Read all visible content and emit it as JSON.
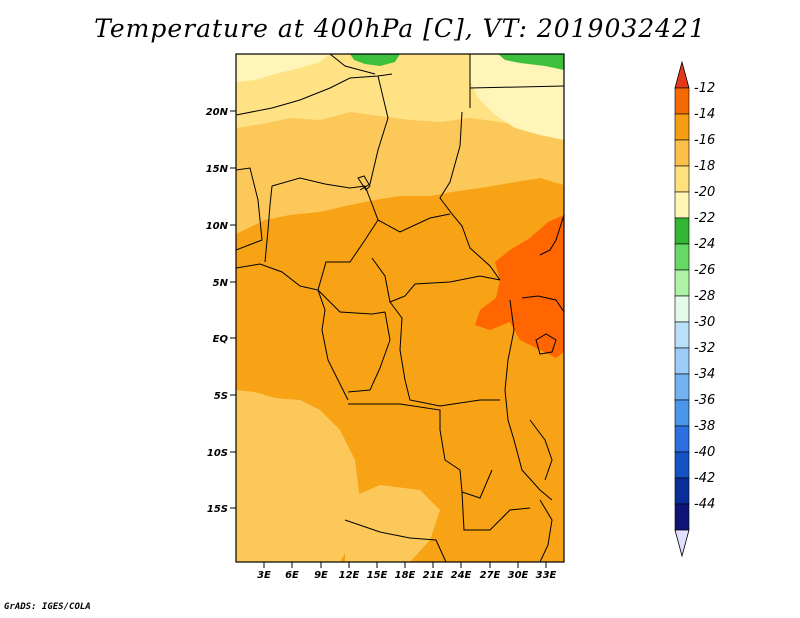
{
  "title": "Temperature at 400hPa [C], VT: 2019032421",
  "footer": "GrADS: IGES/COLA",
  "map": {
    "variable": "Temperature",
    "level": "400hPa",
    "units": "C",
    "valid_time": "2019032421",
    "lat_labels": [
      "20N",
      "15N",
      "10N",
      "5N",
      "EQ",
      "5S",
      "10S",
      "15S"
    ],
    "lon_labels": [
      "3E",
      "6E",
      "9E",
      "12E",
      "15E",
      "18E",
      "21E",
      "24E",
      "27E",
      "30E",
      "33E"
    ],
    "colors": {
      "c_m24_m22": "#3dc13d",
      "c_m22_m20": "#fff5b8",
      "c_m20_m18": "#ffe283",
      "c_m18_m16": "#fbc859",
      "c_m16_m14": "#f7a315",
      "c_m14_m12": "#ff6500",
      "outline": "#000000"
    }
  },
  "colorbar": {
    "levels": [
      "-12",
      "-14",
      "-16",
      "-18",
      "-20",
      "-22",
      "-24",
      "-26",
      "-28",
      "-30",
      "-32",
      "-34",
      "-36",
      "-38",
      "-40",
      "-42",
      "-44"
    ],
    "colors": [
      "#e5391c",
      "#f56a00",
      "#f79d14",
      "#fbc04a",
      "#ffe07e",
      "#fff6b6",
      "#34b534",
      "#66d966",
      "#aef2a6",
      "#e4fbe9",
      "#b9dffb",
      "#9bcdf7",
      "#73b3f1",
      "#4a94ea",
      "#2c6fe1",
      "#1553c5",
      "#0a2e99",
      "#0e1478",
      "#e0dfff"
    ]
  }
}
